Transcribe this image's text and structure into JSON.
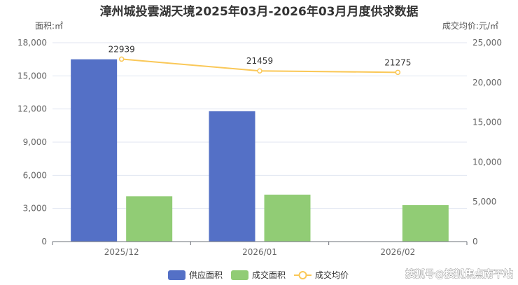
{
  "chart_data": {
    "type": "bar",
    "title": "漳州城投雲湖天境2025年03月-2026年03月月度供求数据",
    "categories": [
      "2025/12",
      "2026/01",
      "2026/02"
    ],
    "y_left": {
      "name": "面积:㎡",
      "range": [
        0,
        18000
      ],
      "ticks": [
        "0",
        "3,000",
        "6,000",
        "9,000",
        "12,000",
        "15,000",
        "18,000"
      ]
    },
    "y_right": {
      "name": "成交均价:元/㎡",
      "range": [
        0,
        25000
      ],
      "ticks": [
        "0",
        "5,000",
        "10,000",
        "15,000",
        "20,000",
        "25,000"
      ]
    },
    "grid": true,
    "legend_position": "bottom",
    "series": [
      {
        "name": "供应面积",
        "kind": "bar",
        "axis": "left",
        "color": "#5470c6",
        "values": [
          16500,
          11800,
          null
        ]
      },
      {
        "name": "成交面积",
        "kind": "bar",
        "axis": "left",
        "color": "#91cc75",
        "values": [
          4100,
          4250,
          3300
        ]
      },
      {
        "name": "成交均价",
        "kind": "line",
        "axis": "right",
        "color": "#fac858",
        "values": [
          22939,
          21459,
          21275
        ],
        "labels": [
          "22939",
          "21459",
          "21275"
        ]
      }
    ]
  },
  "watermark": "搜狐号@搜狐焦点南平站"
}
